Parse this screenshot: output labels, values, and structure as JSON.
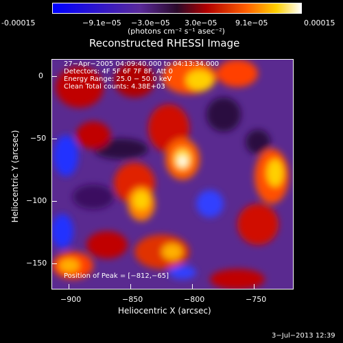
{
  "colorbar": {
    "tick_labels": [
      "-0.00015",
      "−9.1e−05",
      "−3.0e−05",
      "3.0e−05",
      "9.1e−05",
      "0.00015"
    ],
    "units": "(photons cm⁻² s⁻¹ asec⁻²)"
  },
  "title": "Reconstructed RHESSI Image",
  "info": {
    "line1": "27−Apr−2005 04:09:40.000 to 04:13:34.000",
    "line2": "Detectors: 4F 5F 6F 7F 8F, Att 0",
    "line3": "Energy Range: 25.0 − 50.0 keV",
    "line4": "Clean     Total counts: 4.38E+03"
  },
  "peak": "Position of Peak = [−812,−65]",
  "axes": {
    "xlabel": "Heliocentric X (arcsec)",
    "ylabel": "Heliocentric Y (arcsec)",
    "xticks": [
      "−900",
      "−850",
      "−800",
      "−750"
    ],
    "yticks": [
      "0",
      "−50",
      "−100",
      "−150"
    ]
  },
  "timestamp": "3−Jul−2013 12:39"
}
